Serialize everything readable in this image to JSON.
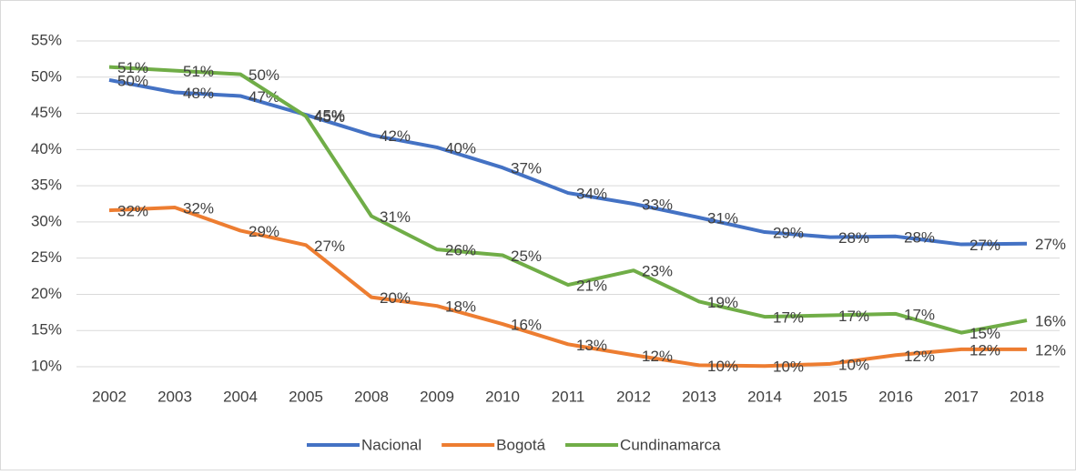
{
  "chart_data": {
    "type": "line",
    "categories": [
      "2002",
      "2003",
      "2004",
      "2005",
      "2008",
      "2009",
      "2010",
      "2011",
      "2012",
      "2013",
      "2014",
      "2015",
      "2016",
      "2017",
      "2018"
    ],
    "series": [
      {
        "name": "Nacional",
        "color": "#4472c4",
        "values": [
          49.6,
          47.9,
          47.4,
          44.8,
          42.0,
          40.3,
          37.5,
          34.0,
          32.5,
          30.6,
          28.6,
          27.9,
          28.0,
          26.9,
          27.0
        ],
        "value_labels": [
          "50%",
          "48%",
          "47%",
          "45%",
          "42%",
          "40%",
          "37%",
          "34%",
          "33%",
          "31%",
          "29%",
          "28%",
          "28%",
          "27%",
          "27%"
        ]
      },
      {
        "name": "Bogotá",
        "color": "#ed7d31",
        "values": [
          31.6,
          32.0,
          28.8,
          26.8,
          19.6,
          18.4,
          15.9,
          13.1,
          11.6,
          10.2,
          10.1,
          10.4,
          11.6,
          12.4,
          12.4
        ],
        "value_labels": [
          "32%",
          "32%",
          "29%",
          "27%",
          "20%",
          "18%",
          "16%",
          "13%",
          "12%",
          "10%",
          "10%",
          "10%",
          "12%",
          "12%",
          "12%"
        ]
      },
      {
        "name": "Cundinamarca",
        "color": "#70ad47",
        "values": [
          51.4,
          50.9,
          50.4,
          44.6,
          30.8,
          26.2,
          25.4,
          21.3,
          23.3,
          19.0,
          16.9,
          17.1,
          17.3,
          14.7,
          16.4
        ],
        "value_labels": [
          "51%",
          "51%",
          "50%",
          "45%",
          "31%",
          "26%",
          "25%",
          "21%",
          "23%",
          "19%",
          "17%",
          "17%",
          "17%",
          "15%",
          "16%"
        ]
      }
    ],
    "ylim": [
      10,
      55
    ],
    "yticks": [
      {
        "value": 10,
        "label": "10%"
      },
      {
        "value": 15,
        "label": "15%"
      },
      {
        "value": 20,
        "label": "20%"
      },
      {
        "value": 25,
        "label": "25%"
      },
      {
        "value": 30,
        "label": "30%"
      },
      {
        "value": 35,
        "label": "35%"
      },
      {
        "value": 40,
        "label": "40%"
      },
      {
        "value": 45,
        "label": "45%"
      },
      {
        "value": 50,
        "label": "50%"
      },
      {
        "value": 55,
        "label": "55%"
      }
    ],
    "grid": true,
    "legend": "bottom"
  }
}
